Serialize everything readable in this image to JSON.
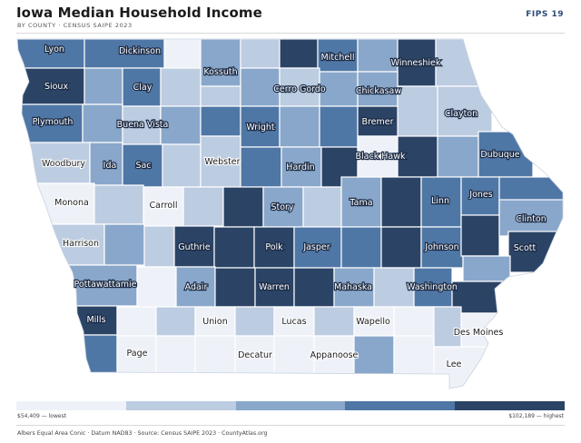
{
  "header": {
    "title": "Iowa Median Household Income",
    "subtitle": "BY COUNTY · CENSUS SAIPE 2023",
    "badge": "FIPS 19"
  },
  "colors": {
    "c1": "#eef2f8",
    "c2": "#bccce1",
    "c3": "#89a7ca",
    "c4": "#4f77a6",
    "c5": "#2b4466",
    "outline": "#ffffff"
  },
  "legend": {
    "low_label": "$54,409 — lowest",
    "high_label": "$102,189 — highest",
    "classes": 5
  },
  "footer": {
    "text": "Albers Equal Area Conic · Datum NAD83 · Source: Census SAIPE 2023 · CountyAtlas.org"
  },
  "map": {
    "labels": [
      {
        "id": "lyon",
        "text": "Lyon",
        "cls": 4
      },
      {
        "id": "dickinson",
        "text": "Dickinson",
        "cls": 4
      },
      {
        "id": "kossuth",
        "text": "Kossuth",
        "cls": 3
      },
      {
        "id": "mitchell",
        "text": "Mitchell",
        "cls": 4
      },
      {
        "id": "winneshiek",
        "text": "Winneshiek",
        "cls": 5
      },
      {
        "id": "sioux",
        "text": "Sioux",
        "cls": 5
      },
      {
        "id": "clay",
        "text": "Clay",
        "cls": 4
      },
      {
        "id": "cerro-gordo",
        "text": "Cerro Gordo",
        "cls": 3
      },
      {
        "id": "chickasaw",
        "text": "Chickasaw",
        "cls": 3
      },
      {
        "id": "clayton",
        "text": "Clayton",
        "cls": 2
      },
      {
        "id": "plymouth",
        "text": "Plymouth",
        "cls": 4
      },
      {
        "id": "buena-vista",
        "text": "Buena Vista",
        "cls": 3
      },
      {
        "id": "wright",
        "text": "Wright",
        "cls": 4
      },
      {
        "id": "bremer",
        "text": "Bremer",
        "cls": 5
      },
      {
        "id": "woodbury",
        "text": "Woodbury",
        "cls": 2
      },
      {
        "id": "ida",
        "text": "Ida",
        "cls": 3
      },
      {
        "id": "sac",
        "text": "Sac",
        "cls": 4
      },
      {
        "id": "webster",
        "text": "Webster",
        "cls": 2
      },
      {
        "id": "hardin",
        "text": "Hardin",
        "cls": 3
      },
      {
        "id": "black-hawk",
        "text": "Black Hawk",
        "cls": 1
      },
      {
        "id": "dubuque",
        "text": "Dubuque",
        "cls": 4
      },
      {
        "id": "monona",
        "text": "Monona",
        "cls": 1
      },
      {
        "id": "carroll",
        "text": "Carroll",
        "cls": 1
      },
      {
        "id": "story",
        "text": "Story",
        "cls": 3
      },
      {
        "id": "tama",
        "text": "Tama",
        "cls": 3
      },
      {
        "id": "linn",
        "text": "Linn",
        "cls": 4
      },
      {
        "id": "jones",
        "text": "Jones",
        "cls": 4
      },
      {
        "id": "clinton",
        "text": "Clinton",
        "cls": 3
      },
      {
        "id": "harrison",
        "text": "Harrison",
        "cls": 2
      },
      {
        "id": "guthrie",
        "text": "Guthrie",
        "cls": 5
      },
      {
        "id": "polk",
        "text": "Polk",
        "cls": 5
      },
      {
        "id": "jasper",
        "text": "Jasper",
        "cls": 4
      },
      {
        "id": "johnson",
        "text": "Johnson",
        "cls": 4
      },
      {
        "id": "scott",
        "text": "Scott",
        "cls": 5
      },
      {
        "id": "pottawattamie",
        "text": "Pottawattamie",
        "cls": 3
      },
      {
        "id": "adair",
        "text": "Adair",
        "cls": 3
      },
      {
        "id": "warren",
        "text": "Warren",
        "cls": 5
      },
      {
        "id": "mahaska",
        "text": "Mahaska",
        "cls": 3
      },
      {
        "id": "washington",
        "text": "Washington",
        "cls": 4
      },
      {
        "id": "mills",
        "text": "Mills",
        "cls": 5
      },
      {
        "id": "union",
        "text": "Union",
        "cls": 1
      },
      {
        "id": "lucas",
        "text": "Lucas",
        "cls": 1
      },
      {
        "id": "wapello",
        "text": "Wapello",
        "cls": 1
      },
      {
        "id": "des-moines",
        "text": "Des Moines",
        "cls": 2
      },
      {
        "id": "page",
        "text": "Page",
        "cls": 1
      },
      {
        "id": "decatur",
        "text": "Decatur",
        "cls": 1
      },
      {
        "id": "appanoose",
        "text": "Appanoose",
        "cls": 1
      },
      {
        "id": "lee",
        "text": "Lee",
        "cls": 1
      }
    ]
  }
}
